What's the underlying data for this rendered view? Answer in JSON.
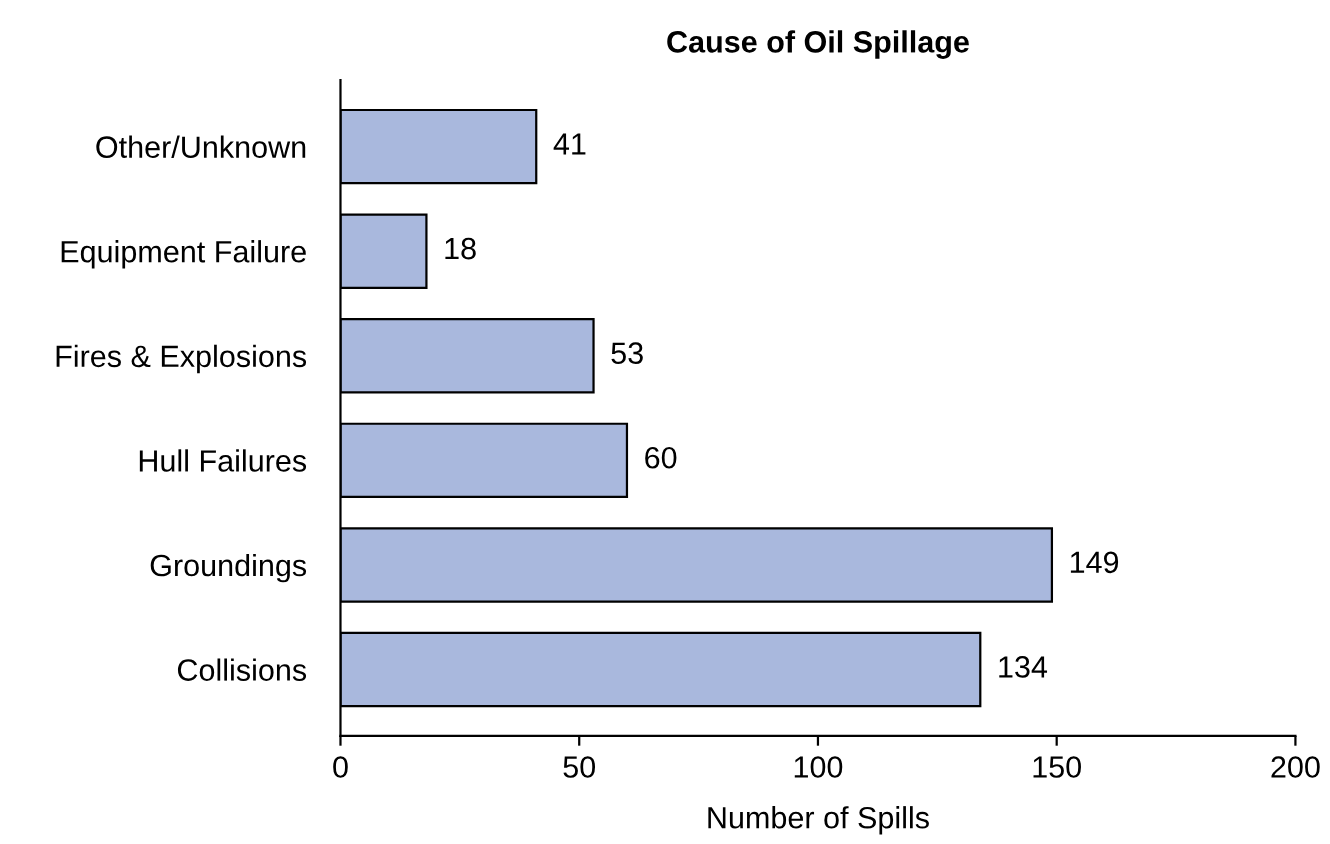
{
  "chart_data": {
    "type": "bar",
    "orientation": "horizontal",
    "title": "Cause of Oil Spillage",
    "xlabel": "Number of Spills",
    "categories": [
      "Other/Unknown",
      "Equipment Failure",
      "Fires & Explosions",
      "Hull Failures",
      "Groundings",
      "Collisions"
    ],
    "values": [
      41,
      18,
      53,
      60,
      149,
      134
    ],
    "color": "#a9b8dd",
    "xlim": [
      0,
      200
    ],
    "xticks": [
      0,
      50,
      100,
      150,
      200
    ],
    "data_labels": true,
    "grid": false,
    "legend": false
  }
}
